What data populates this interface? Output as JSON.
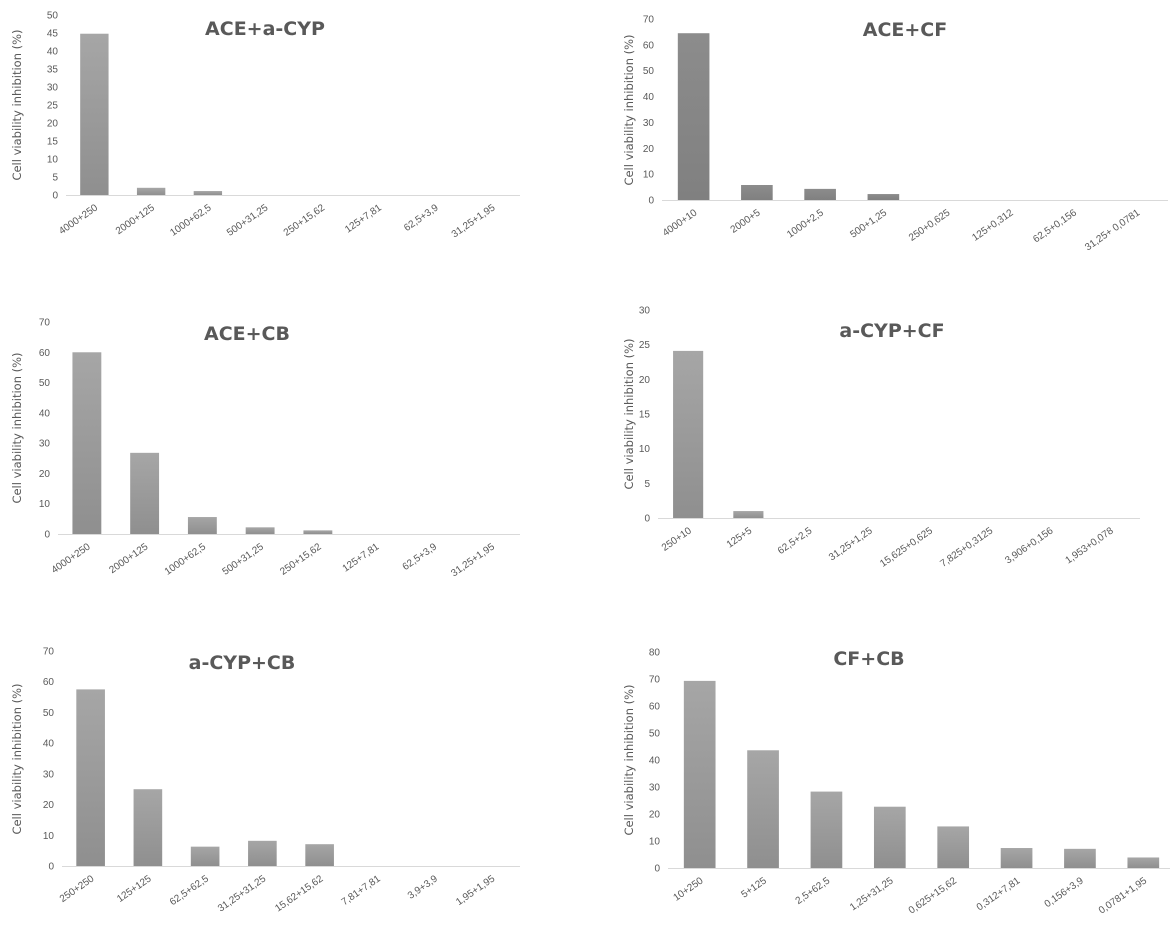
{
  "chart_data": [
    {
      "type": "bar",
      "title": "ACE+a-CYP",
      "ylabel": "Cell viability inhibition (%)",
      "xlabel": "",
      "ylim": [
        0,
        50
      ],
      "yticks": [
        0,
        5,
        10,
        15,
        20,
        25,
        30,
        35,
        40,
        45,
        50
      ],
      "categories": [
        "4000+250",
        "2000+125",
        "1000+62,5",
        "500+31,25",
        "250+15,62",
        "125+7,81",
        "62,5+3,9",
        "31,25+1,95"
      ],
      "values": [
        44.8,
        2.0,
        1.1,
        0,
        0,
        0,
        0,
        0
      ],
      "grid": false,
      "color": "#a6a6a6"
    },
    {
      "type": "bar",
      "title": "ACE+CF",
      "ylabel": "Cell viability inhibition (%)",
      "xlabel": "",
      "ylim": [
        0,
        70
      ],
      "yticks": [
        0,
        10,
        20,
        30,
        40,
        50,
        60,
        70
      ],
      "categories": [
        "4000+10",
        "2000+5",
        "1000+2,5",
        "500+1,25",
        "250+0,625",
        "125+0,312",
        "62,5+0,156",
        "31,25+ 0,0781"
      ],
      "values": [
        64.5,
        5.8,
        4.3,
        2.3,
        0,
        0,
        0,
        0
      ],
      "grid": false,
      "color": "#8c8c8c"
    },
    {
      "type": "bar",
      "title": "ACE+CB",
      "ylabel": "Cell viability inhibition (%)",
      "xlabel": "",
      "ylim": [
        0,
        70
      ],
      "yticks": [
        0,
        10,
        20,
        30,
        40,
        50,
        60,
        70
      ],
      "categories": [
        "4000+250",
        "2000+125",
        "1000+62,5",
        "500+31,25",
        "250+15,62",
        "125+7,81",
        "62,5+3,9",
        "31,25+1,95"
      ],
      "values": [
        60.0,
        26.8,
        5.6,
        2.2,
        1.2,
        0,
        0,
        0
      ],
      "grid": false,
      "color": "#a6a6a6"
    },
    {
      "type": "bar",
      "title": "a-CYP+CF",
      "ylabel": "Cell viability inhibition (%)",
      "xlabel": "",
      "ylim": [
        0,
        30
      ],
      "yticks": [
        0,
        5,
        10,
        15,
        20,
        25,
        30
      ],
      "categories": [
        "250+10",
        "125+5",
        "62,5+2,5",
        "31,25+1,25",
        "15,625+0,625",
        "7,825+0,3125",
        "3,906+0,156",
        "1,953+0,078"
      ],
      "values": [
        24.1,
        1.0,
        0,
        0,
        0,
        0,
        0,
        0
      ],
      "grid": false,
      "color": "#a6a6a6"
    },
    {
      "type": "bar",
      "title": "a-CYP+CB",
      "ylabel": "Cell viability inhibition (%)",
      "xlabel": "",
      "ylim": [
        0,
        70
      ],
      "yticks": [
        0,
        10,
        20,
        30,
        40,
        50,
        60,
        70
      ],
      "categories": [
        "250+250",
        "125+125",
        "62,5+62,5",
        "31,25+31,25",
        "15,62+15,62",
        "7,81+7,81",
        "3,9+3,9",
        "1,95+1,95"
      ],
      "values": [
        57.5,
        25.0,
        6.3,
        8.2,
        7.1,
        0,
        0,
        0
      ],
      "grid": false,
      "color": "#a6a6a6"
    },
    {
      "type": "bar",
      "title": "CF+CB",
      "ylabel": "Cell viability inhibition (%)",
      "xlabel": "",
      "ylim": [
        0,
        80
      ],
      "yticks": [
        0,
        10,
        20,
        30,
        40,
        50,
        60,
        70,
        80
      ],
      "categories": [
        "10+250",
        "5+125",
        "2,5+62,5",
        "1,25+31,25",
        "0,625+15,62",
        "0,312+7,81",
        "0,156+3,9",
        "0,0781+1,95"
      ],
      "values": [
        69.3,
        43.6,
        28.3,
        22.7,
        15.4,
        7.4,
        7.1,
        3.9
      ],
      "grid": false,
      "color": "#a6a6a6"
    }
  ]
}
